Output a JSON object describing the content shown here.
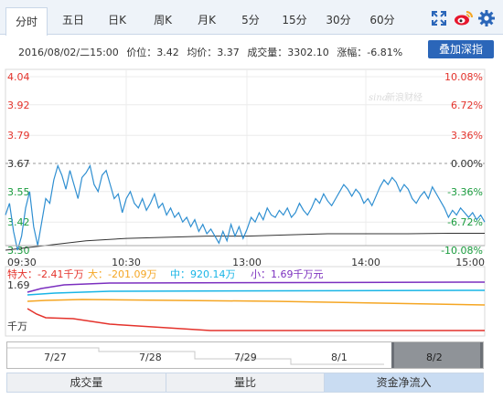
{
  "tabs": [
    {
      "label": "分时",
      "active": true
    },
    {
      "label": "五日"
    },
    {
      "label": "日K"
    },
    {
      "label": "周K"
    },
    {
      "label": "月K"
    },
    {
      "label": "5分"
    },
    {
      "label": "15分"
    },
    {
      "label": "30分"
    },
    {
      "label": "60分"
    }
  ],
  "icons": [
    "fullscreen-icon",
    "weibo-icon",
    "gear-icon"
  ],
  "info": {
    "datetime": "2016/08/02/二15:00",
    "price": "价位：3.42",
    "avg": "均价：3.37",
    "volume": "成交量：3302.10",
    "change": "涨幅：-6.81%"
  },
  "overlay_button": "叠加深指",
  "watermark": "新浪财经",
  "watermark_logo": "sina",
  "chart_data": {
    "type": "line",
    "price_axis": [
      "4.04",
      "3.92",
      "3.79",
      "3.67",
      "3.55",
      "3.42",
      "3.30"
    ],
    "pct_axis": [
      "10.08%",
      "6.72%",
      "3.36%",
      "0.00%",
      "-3.36%",
      "-6.72%",
      "-10.08%"
    ],
    "x_ticks": [
      "09:30",
      "10:30",
      "13:00",
      "14:00",
      "15:00"
    ],
    "ylim": [
      3.3,
      4.04
    ],
    "pre_close": 3.67,
    "price_series": [
      [
        0,
        3.45
      ],
      [
        1,
        3.5
      ],
      [
        2,
        3.38
      ],
      [
        3,
        3.3
      ],
      [
        4,
        3.36
      ],
      [
        5,
        3.48
      ],
      [
        6,
        3.55
      ],
      [
        7,
        3.4
      ],
      [
        8,
        3.32
      ],
      [
        9,
        3.42
      ],
      [
        10,
        3.52
      ],
      [
        11,
        3.5
      ],
      [
        12,
        3.6
      ],
      [
        13,
        3.66
      ],
      [
        14,
        3.62
      ],
      [
        15,
        3.56
      ],
      [
        16,
        3.64
      ],
      [
        17,
        3.58
      ],
      [
        18,
        3.52
      ],
      [
        19,
        3.61
      ],
      [
        20,
        3.63
      ],
      [
        21,
        3.66
      ],
      [
        22,
        3.58
      ],
      [
        23,
        3.55
      ],
      [
        24,
        3.62
      ],
      [
        25,
        3.64
      ],
      [
        26,
        3.58
      ],
      [
        27,
        3.52
      ],
      [
        28,
        3.54
      ],
      [
        29,
        3.46
      ],
      [
        30,
        3.52
      ],
      [
        31,
        3.55
      ],
      [
        32,
        3.5
      ],
      [
        33,
        3.48
      ],
      [
        34,
        3.52
      ],
      [
        35,
        3.47
      ],
      [
        36,
        3.5
      ],
      [
        37,
        3.54
      ],
      [
        38,
        3.48
      ],
      [
        39,
        3.5
      ],
      [
        40,
        3.45
      ],
      [
        41,
        3.48
      ],
      [
        42,
        3.44
      ],
      [
        43,
        3.46
      ],
      [
        44,
        3.42
      ],
      [
        45,
        3.44
      ],
      [
        46,
        3.4
      ],
      [
        47,
        3.43
      ],
      [
        48,
        3.38
      ],
      [
        49,
        3.41
      ],
      [
        50,
        3.37
      ],
      [
        51,
        3.39
      ],
      [
        52,
        3.36
      ],
      [
        53,
        3.33
      ],
      [
        54,
        3.38
      ],
      [
        55,
        3.34
      ],
      [
        56,
        3.41
      ],
      [
        57,
        3.36
      ],
      [
        58,
        3.4
      ],
      [
        59,
        3.35
      ],
      [
        60,
        3.39
      ],
      [
        61,
        3.44
      ],
      [
        62,
        3.42
      ],
      [
        63,
        3.46
      ],
      [
        64,
        3.43
      ],
      [
        65,
        3.48
      ],
      [
        66,
        3.45
      ],
      [
        67,
        3.44
      ],
      [
        68,
        3.47
      ],
      [
        69,
        3.45
      ],
      [
        70,
        3.48
      ],
      [
        71,
        3.44
      ],
      [
        72,
        3.46
      ],
      [
        73,
        3.5
      ],
      [
        74,
        3.47
      ],
      [
        75,
        3.45
      ],
      [
        76,
        3.48
      ],
      [
        77,
        3.52
      ],
      [
        78,
        3.5
      ],
      [
        79,
        3.54
      ],
      [
        80,
        3.51
      ],
      [
        81,
        3.49
      ],
      [
        82,
        3.52
      ],
      [
        83,
        3.55
      ],
      [
        84,
        3.58
      ],
      [
        85,
        3.56
      ],
      [
        86,
        3.53
      ],
      [
        87,
        3.56
      ],
      [
        88,
        3.54
      ],
      [
        89,
        3.5
      ],
      [
        90,
        3.52
      ],
      [
        91,
        3.49
      ],
      [
        92,
        3.53
      ],
      [
        93,
        3.57
      ],
      [
        94,
        3.6
      ],
      [
        95,
        3.58
      ],
      [
        96,
        3.61
      ],
      [
        97,
        3.59
      ],
      [
        98,
        3.55
      ],
      [
        99,
        3.58
      ],
      [
        100,
        3.56
      ],
      [
        101,
        3.52
      ],
      [
        102,
        3.5
      ],
      [
        103,
        3.53
      ],
      [
        104,
        3.55
      ],
      [
        105,
        3.52
      ],
      [
        106,
        3.57
      ],
      [
        107,
        3.54
      ],
      [
        108,
        3.51
      ],
      [
        109,
        3.48
      ],
      [
        110,
        3.44
      ],
      [
        111,
        3.47
      ],
      [
        112,
        3.45
      ],
      [
        113,
        3.48
      ],
      [
        114,
        3.46
      ],
      [
        115,
        3.44
      ],
      [
        116,
        3.46
      ],
      [
        117,
        3.43
      ],
      [
        118,
        3.45
      ],
      [
        119,
        3.42
      ]
    ],
    "avg_series": [
      [
        0,
        3.3
      ],
      [
        10,
        3.32
      ],
      [
        20,
        3.34
      ],
      [
        30,
        3.35
      ],
      [
        40,
        3.355
      ],
      [
        50,
        3.36
      ],
      [
        60,
        3.36
      ],
      [
        70,
        3.365
      ],
      [
        80,
        3.37
      ],
      [
        90,
        3.37
      ],
      [
        100,
        3.37
      ],
      [
        110,
        3.372
      ],
      [
        119,
        3.372
      ]
    ]
  },
  "flow": {
    "legend": [
      {
        "label": "特大：-2.41千万",
        "color": "#e4322b"
      },
      {
        "label": "大：-201.09万",
        "color": "#f5a623"
      },
      {
        "label": "中：920.14万",
        "color": "#19b5e6"
      },
      {
        "label": "小：1.69千万元",
        "color": "#7b2fbf"
      }
    ],
    "axis_top": "1.69",
    "axis_unit": "千万"
  },
  "dates": [
    "7/27",
    "7/28",
    "7/29",
    "8/1",
    "8/2"
  ],
  "bottom_tabs": [
    {
      "label": "成交量"
    },
    {
      "label": "量比"
    },
    {
      "label": "资金净流入",
      "active": true
    }
  ]
}
